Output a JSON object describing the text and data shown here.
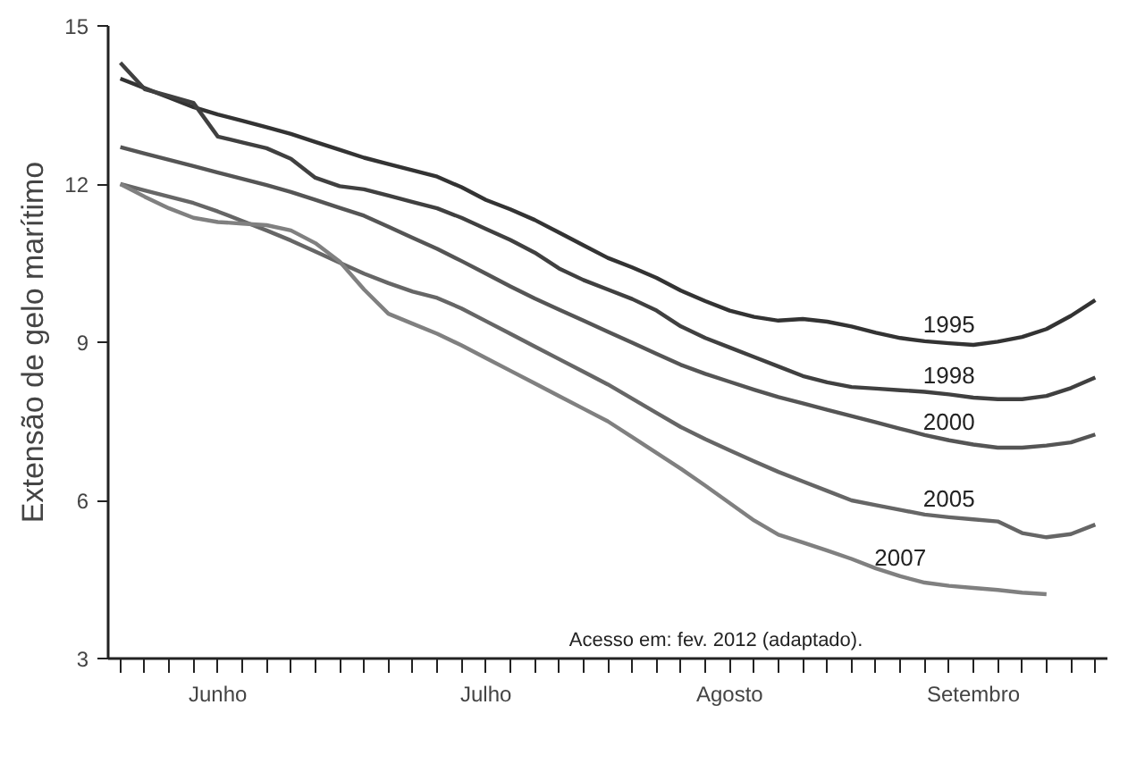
{
  "chart_data": {
    "type": "line",
    "ylabel": "Extensão de gelo marítimo",
    "categories": [
      null,
      null,
      null,
      null,
      "Junho",
      null,
      null,
      null,
      null,
      null,
      null,
      null,
      null,
      null,
      null,
      "Julho",
      null,
      null,
      null,
      null,
      null,
      null,
      null,
      null,
      null,
      "Agosto",
      null,
      null,
      null,
      null,
      null,
      null,
      null,
      null,
      null,
      "Setembro",
      null,
      null,
      null,
      null,
      null
    ],
    "ylim": [
      3,
      15
    ],
    "yticks": [
      3,
      6,
      9,
      12,
      15
    ],
    "grid": false,
    "marker": "none",
    "line_style": "solid",
    "series": [
      {
        "name": "1995",
        "color": "#333333",
        "values": [
          14.0,
          13.82,
          13.64,
          13.46,
          13.32,
          13.2,
          13.08,
          12.95,
          12.8,
          12.65,
          12.5,
          12.38,
          12.26,
          12.14,
          11.94,
          11.7,
          11.52,
          11.32,
          11.08,
          10.84,
          10.6,
          10.42,
          10.22,
          9.98,
          9.78,
          9.6,
          9.48,
          9.41,
          9.44,
          9.39,
          9.3,
          9.18,
          9.08,
          9.02,
          8.98,
          8.95,
          9.01,
          9.1,
          9.25,
          9.5,
          9.8
        ]
      },
      {
        "name": "1998",
        "color": "#404040",
        "values": [
          14.3,
          13.8,
          13.67,
          13.54,
          12.9,
          12.79,
          12.68,
          12.48,
          12.12,
          11.96,
          11.9,
          11.78,
          11.66,
          11.54,
          11.36,
          11.15,
          10.94,
          10.7,
          10.4,
          10.18,
          10.0,
          9.82,
          9.6,
          9.3,
          9.08,
          8.9,
          8.72,
          8.54,
          8.36,
          8.24,
          8.15,
          8.12,
          8.09,
          8.06,
          8.01,
          7.95,
          7.92,
          7.92,
          7.98,
          8.13,
          8.33
        ]
      },
      {
        "name": "2000",
        "color": "#555555",
        "values": [
          12.7,
          12.58,
          12.46,
          12.34,
          12.22,
          12.1,
          11.98,
          11.85,
          11.7,
          11.55,
          11.4,
          11.19,
          10.98,
          10.77,
          10.54,
          10.3,
          10.06,
          9.83,
          9.62,
          9.41,
          9.2,
          8.99,
          8.78,
          8.57,
          8.4,
          8.25,
          8.1,
          7.96,
          7.84,
          7.72,
          7.6,
          7.48,
          7.36,
          7.24,
          7.14,
          7.06,
          7.0,
          7.0,
          7.04,
          7.1,
          7.25
        ]
      },
      {
        "name": "2005",
        "color": "#666666",
        "values": [
          12.0,
          11.88,
          11.76,
          11.64,
          11.48,
          11.3,
          11.12,
          10.93,
          10.72,
          10.51,
          10.3,
          10.12,
          9.96,
          9.84,
          9.64,
          9.4,
          9.16,
          8.92,
          8.68,
          8.44,
          8.2,
          7.93,
          7.66,
          7.39,
          7.16,
          6.95,
          6.74,
          6.54,
          6.36,
          6.18,
          6.0,
          5.91,
          5.82,
          5.73,
          5.68,
          5.64,
          5.6,
          5.38,
          5.3,
          5.36,
          5.54
        ]
      },
      {
        "name": "2007",
        "color": "#808080",
        "values": [
          12.0,
          11.76,
          11.54,
          11.36,
          11.28,
          11.25,
          11.22,
          11.12,
          10.88,
          10.53,
          10.0,
          9.54,
          9.35,
          9.16,
          8.94,
          8.7,
          8.46,
          8.22,
          7.98,
          7.74,
          7.5,
          7.2,
          6.9,
          6.6,
          6.28,
          5.95,
          5.62,
          5.35,
          5.2,
          5.05,
          4.89,
          4.71,
          4.56,
          4.44,
          4.38,
          4.34,
          4.3,
          4.25,
          4.22,
          null,
          null
        ]
      }
    ],
    "annotations": [
      "Acesso em: fev. 2012 (adaptado)."
    ]
  }
}
